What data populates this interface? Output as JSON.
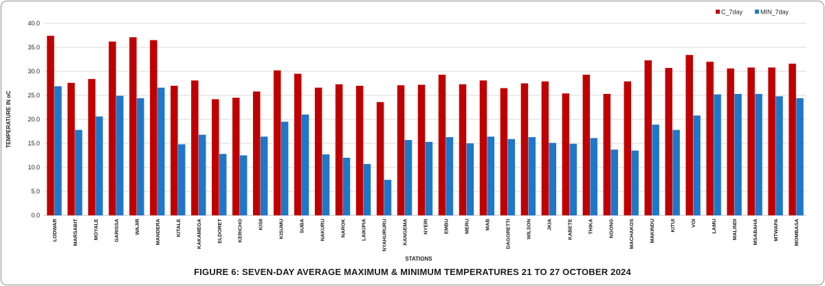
{
  "caption": "FIGURE 6: SEVEN-DAY AVERAGE MAXIMUM & MINIMUM TEMPERATURES  21 TO 27 OCTOBER 2024",
  "chart_data": {
    "type": "bar",
    "xlabel": "STATIONS",
    "ylabel": "TEMPERATURE IN oC",
    "ylim": [
      0,
      40
    ],
    "yticks": [
      "0.0",
      "5.0",
      "10.0",
      "15.0",
      "20.0",
      "25.0",
      "30.0",
      "35.0",
      "40.0"
    ],
    "grid": true,
    "legend_position": "top-right",
    "categories": [
      "LODWAR",
      "MARSABIT",
      "MOYALE",
      "GARISSA",
      "WAJIR",
      "MANDERA",
      "KITALE",
      "KAKAMEGA",
      "ELDORET",
      "KERICHO",
      "KISII",
      "KISUMU",
      "SUBA",
      "NAKURU",
      "NAROK",
      "LAIKIPIA",
      "NYAHURURU",
      "KANGEMA",
      "NYERI",
      "EMBU",
      "MERU",
      "MAB",
      "DAGORETTI",
      "WILSON",
      "JKIA",
      "KABETE",
      "THIKA",
      "NGONG",
      "MACHAKOS",
      "MAKINDU",
      "KITUI",
      "VOI",
      "LAMU",
      "MALINDI",
      "MSABAHA",
      "MTWAPA",
      "MOMBASA"
    ],
    "series": [
      {
        "name": "C_7day",
        "color": "#c00000",
        "values": [
          37.4,
          27.6,
          28.4,
          36.2,
          37.1,
          36.5,
          27.0,
          28.1,
          24.2,
          24.5,
          25.8,
          30.2,
          29.5,
          26.6,
          27.3,
          27.0,
          23.6,
          27.1,
          27.2,
          29.3,
          27.3,
          28.1,
          26.5,
          27.5,
          27.9,
          25.4,
          29.3,
          25.3,
          27.9,
          32.3,
          30.7,
          33.4,
          32.0,
          30.6,
          30.8,
          30.8,
          31.6
        ]
      },
      {
        "name": "MIN_7day",
        "color": "#1f77c9",
        "values": [
          26.9,
          17.8,
          20.6,
          24.9,
          24.4,
          26.6,
          14.8,
          16.8,
          12.8,
          12.5,
          16.4,
          19.5,
          21.0,
          12.7,
          12.0,
          10.7,
          7.4,
          15.7,
          15.3,
          16.3,
          15.0,
          16.4,
          15.9,
          16.3,
          15.1,
          14.9,
          16.1,
          13.7,
          13.5,
          18.9,
          17.8,
          20.8,
          25.2,
          25.3,
          25.3,
          24.8,
          24.4
        ]
      }
    ]
  }
}
